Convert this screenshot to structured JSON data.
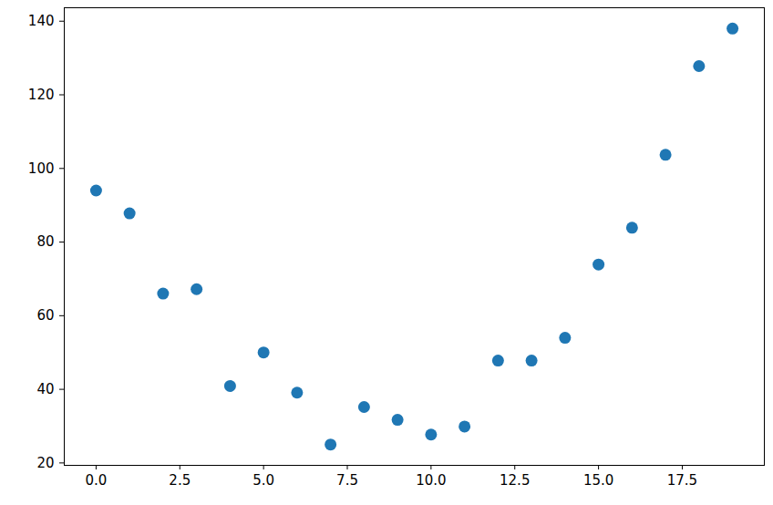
{
  "chart_data": {
    "type": "scatter",
    "x": [
      0,
      1,
      2,
      3,
      4,
      5,
      6,
      7,
      8,
      9,
      10,
      11,
      12,
      13,
      14,
      15,
      16,
      17,
      18,
      19
    ],
    "values": [
      94.0,
      87.8,
      66.0,
      67.2,
      40.9,
      50.0,
      39.1,
      25.0,
      35.2,
      31.7,
      27.7,
      29.9,
      47.8,
      47.8,
      54.0,
      73.9,
      83.9,
      103.7,
      127.8,
      138.0
    ],
    "color": "#1f77b4",
    "marker": "circle",
    "xlim": [
      -0.95,
      19.95
    ],
    "ylim": [
      19.35,
      143.65
    ],
    "xticks": [
      {
        "value": 0,
        "label": "0.0"
      },
      {
        "value": 2.5,
        "label": "2.5"
      },
      {
        "value": 5,
        "label": "5.0"
      },
      {
        "value": 7.5,
        "label": "7.5"
      },
      {
        "value": 10,
        "label": "10.0"
      },
      {
        "value": 12.5,
        "label": "12.5"
      },
      {
        "value": 15,
        "label": "15.0"
      },
      {
        "value": 17.5,
        "label": "17.5"
      }
    ],
    "yticks": [
      20,
      40,
      60,
      80,
      100,
      120,
      140
    ],
    "grid": false
  }
}
